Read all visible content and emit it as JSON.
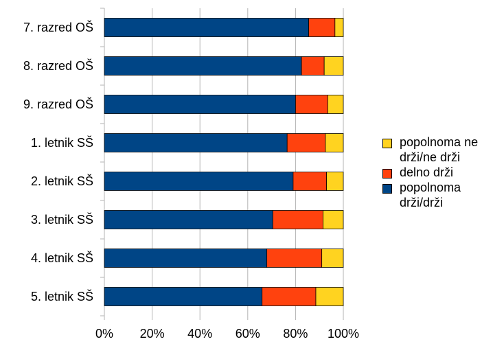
{
  "chart_data": {
    "type": "bar",
    "orientation": "horizontal",
    "stacked": true,
    "percent": true,
    "categories": [
      "7. razred OŠ",
      "8. razred OŠ",
      "9. razred OŠ",
      "1. letnik SŠ",
      "2. letnik SŠ",
      "3. letnik SŠ",
      "4. letnik SŠ",
      "5. letnik SŠ"
    ],
    "series": [
      {
        "name": "popolnoma drži/drži",
        "color": "#004586",
        "values": [
          85.5,
          82.5,
          80,
          76.5,
          79,
          70.5,
          68,
          66
        ]
      },
      {
        "name": "delno drži",
        "color": "#ff420e",
        "values": [
          11,
          9.5,
          13.5,
          16,
          14,
          21,
          23,
          22.5
        ]
      },
      {
        "name": "popolnoma ne drži/ne drži",
        "color": "#ffd320",
        "values": [
          3.5,
          8,
          6.5,
          7.5,
          7,
          8.5,
          9,
          11.5
        ]
      }
    ],
    "xlim": [
      0,
      100
    ],
    "x_ticks": [
      "0%",
      "20%",
      "40%",
      "60%",
      "80%",
      "100%"
    ],
    "grid": true,
    "legend_position": "right",
    "legend_order": [
      "popolnoma ne drži/ne drži",
      "delno drži",
      "popolnoma drži/drži"
    ],
    "legend_lines": {
      "popolnoma ne drži/ne drži": [
        "popolnoma ne",
        "drži/ne drži"
      ],
      "delno drži": [
        "delno drži"
      ],
      "popolnoma drži/drži": [
        "popolnoma",
        "drži/drži"
      ]
    },
    "title": "",
    "xlabel": "",
    "ylabel": ""
  }
}
